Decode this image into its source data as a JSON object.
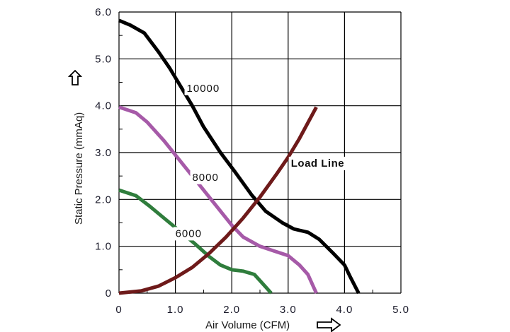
{
  "chart_data": {
    "type": "line",
    "title": "",
    "xlabel": "Air Volume (CFM)",
    "ylabel": "Static Pressure (mmAq)",
    "xlim": [
      0,
      5.0
    ],
    "ylim": [
      0,
      6.0
    ],
    "grid": true,
    "x_ticks": [
      "0",
      "1.0",
      "2.0",
      "3.0",
      "4.0",
      "5.0"
    ],
    "y_ticks": [
      "0",
      "1.0",
      "2.0",
      "3.0",
      "4.0",
      "5.0",
      "6.0"
    ],
    "series": [
      {
        "name": "10000",
        "color": "#000000",
        "x": [
          0,
          0.2,
          0.45,
          0.7,
          0.9,
          1.1,
          1.3,
          1.5,
          1.8,
          2.05,
          2.35,
          2.6,
          2.9,
          3.1,
          3.35,
          3.55,
          3.8,
          4.0,
          4.1,
          4.25
        ],
        "y": [
          5.82,
          5.72,
          5.55,
          5.15,
          4.8,
          4.4,
          4.0,
          3.55,
          3.0,
          2.6,
          2.1,
          1.75,
          1.5,
          1.37,
          1.3,
          1.15,
          0.85,
          0.6,
          0.35,
          0
        ]
      },
      {
        "name": "8000",
        "color": "#a65aa8",
        "x": [
          0,
          0.3,
          0.5,
          0.8,
          1.1,
          1.4,
          1.7,
          2.0,
          2.2,
          2.5,
          2.8,
          3.0,
          3.2,
          3.35,
          3.5
        ],
        "y": [
          3.97,
          3.85,
          3.65,
          3.25,
          2.8,
          2.35,
          1.9,
          1.45,
          1.2,
          1.0,
          0.88,
          0.8,
          0.6,
          0.4,
          0
        ]
      },
      {
        "name": "6000",
        "color": "#2f7d3c",
        "x": [
          0,
          0.3,
          0.55,
          0.8,
          1.1,
          1.35,
          1.6,
          1.8,
          2.0,
          2.2,
          2.4,
          2.55,
          2.7
        ],
        "y": [
          2.2,
          2.08,
          1.85,
          1.6,
          1.3,
          1.05,
          0.78,
          0.6,
          0.5,
          0.47,
          0.4,
          0.2,
          0
        ]
      },
      {
        "name": "Load Line",
        "color": "#6e1a1a",
        "x": [
          0,
          0.4,
          0.7,
          1.0,
          1.3,
          1.6,
          1.9,
          2.2,
          2.5,
          2.8,
          3.0,
          3.2,
          3.5
        ],
        "y": [
          0,
          0.05,
          0.15,
          0.33,
          0.55,
          0.85,
          1.2,
          1.6,
          2.05,
          2.55,
          2.9,
          3.3,
          3.97
        ]
      }
    ],
    "annotations": [
      {
        "text": "10000",
        "x": 1.2,
        "y": 4.3
      },
      {
        "text": "8000",
        "x": 1.3,
        "y": 2.4
      },
      {
        "text": "6000",
        "x": 1.0,
        "y": 1.2
      },
      {
        "text": "Load Line",
        "x": 3.05,
        "y": 2.7
      }
    ]
  }
}
